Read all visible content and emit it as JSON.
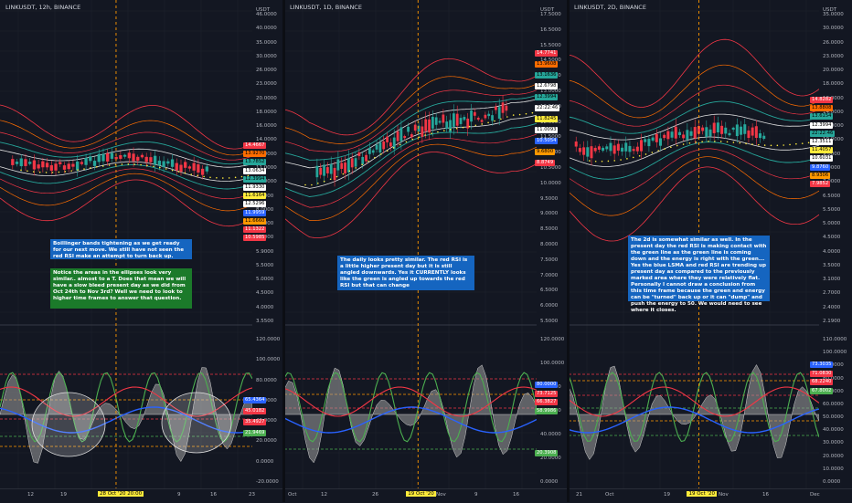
{
  "panes": [
    {
      "symbol": "LINKUSDT, 12h, BINANCE",
      "unit": "USDT",
      "price_ticks": [
        "46.0000",
        "40.0000",
        "35.0000",
        "30.0000",
        "26.0000",
        "23.0000",
        "20.0000",
        "18.0000",
        "16.0000",
        "14.0000",
        "12.0000",
        "11.0000",
        "10.0000",
        "9.0000",
        "8.0000",
        "7.0000",
        "6.5000",
        "5.9000",
        "5.5000",
        "5.0000",
        "4.5000",
        "4.0000",
        "3.5500"
      ],
      "price_tags": [
        "14.4667",
        "13.9270",
        "13.7852",
        "13.0634",
        "12.3994",
        "11.9330",
        "11.6164",
        "12.5296",
        "11.9959",
        "11.6660",
        "11.1322",
        "10.5985"
      ],
      "osc_ticks": [
        "120.0000",
        "100.0000",
        "80.0000",
        "60.0000",
        "40.0000",
        "20.0000",
        "0.0000",
        "-20.0000"
      ],
      "osc_tags": [
        "65.4364",
        "45.0182",
        "35.4927",
        "21.9469"
      ],
      "notes": [
        {
          "style": "blue",
          "text": "Boillinger bands tightening as we get ready for our next move. We still have not seen the red RSI make an attempt to turn back up."
        },
        {
          "style": "green",
          "text": "Notice the areas in the ellipses look very similar.. almost to a T. Does that mean we will have a slow bleed present day as we did from Oct 24th to Nov 3rd? Well we need to look to higher time frames to answer that question."
        }
      ],
      "x_labels": [
        "12",
        "19",
        "Nov",
        "9",
        "16",
        "23"
      ],
      "x_date": "28 Oct '20  20:00"
    },
    {
      "symbol": "LINKUSDT, 1D, BINANCE",
      "unit": "USDT",
      "price_ticks": [
        "17.5000",
        "16.5000",
        "15.5000",
        "14.5000",
        "13.5000",
        "13.0000",
        "12.5000",
        "12.0000",
        "11.5000",
        "11.0000",
        "10.5000",
        "10.0000",
        "9.5000",
        "9.0000",
        "8.5000",
        "8.0000",
        "7.5000",
        "7.0000",
        "6.5000",
        "6.0000",
        "5.5000"
      ],
      "price_tags": [
        "14.7741",
        "13.9608",
        "13.1636",
        "12.6798",
        "12.3994",
        "22:22:46",
        "11.8245",
        "11.0093",
        "10.5054",
        "9.6800",
        "8.8749"
      ],
      "osc_ticks": [
        "120.0000",
        "100.0000",
        "80.0000",
        "60.0000",
        "40.0000",
        "20.0000",
        "0.0000"
      ],
      "osc_tags": [
        "80.0000",
        "73.7125",
        "66.3827",
        "58.9986",
        "20.3908"
      ],
      "notes": [
        {
          "style": "blue",
          "text": "The daily looks pretty similar. The red RSI is a little higher present day but it is still angled downwards. Yes it CURRENTLY looks like the green is angled up towards the red RSI but that can change"
        }
      ],
      "x_labels": [
        "Oct",
        "12",
        "26",
        "Nov",
        "9",
        "16"
      ],
      "x_date": "19 Oct '20"
    },
    {
      "symbol": "LINKUSDT, 2D, BINANCE",
      "unit": "USDT",
      "price_ticks": [
        "35.0000",
        "30.0000",
        "26.0000",
        "23.0000",
        "20.0000",
        "18.0000",
        "16.0000",
        "14.0000",
        "12.0000",
        "10.0000",
        "9.0000",
        "8.0000",
        "7.0000",
        "6.5000",
        "5.5000",
        "5.0000",
        "4.5000",
        "4.0000",
        "3.5000",
        "3.1000",
        "2.7000",
        "2.4000",
        "2.1900"
      ],
      "price_tags": [
        "14.8282",
        "13.8808",
        "13.6154",
        "12.3994",
        "22:22:46",
        "12.3511",
        "11.4057",
        "10.6031",
        "9.8760",
        "8.9306",
        "7.9852"
      ],
      "osc_ticks": [
        "110.0000",
        "100.0000",
        "90.0000",
        "80.0000",
        "70.0000",
        "60.0000",
        "50.0000",
        "40.0000",
        "30.0000",
        "20.0000",
        "10.0000",
        "0.0000"
      ],
      "osc_tags": [
        "73.3035",
        "71.0830",
        "68.2240",
        "67.8002"
      ],
      "notes": [
        {
          "style": "blue",
          "text": "The  2d is somewhat similar as well. In the present day the red RSI is making contact with the green line as the green line is coming down and the energy is right with the green... Yes the blue LSMA and red RSI are trending up present day as compared to the previously marked area where they were relatively flat. Personally I cannot draw a conclusion from this time frame because the green and energy can be \"turned\" back up or it can \"dump\" and push the energy to 50. We would need to see where it closes."
        }
      ],
      "x_labels": [
        "21",
        "Oct",
        "19",
        "Nov",
        "16",
        "Dec"
      ],
      "x_date": "19 Oct '20"
    }
  ],
  "colors": {
    "bg": "#131722",
    "red": "#f23645",
    "green": "#4caf50",
    "blue": "#2962ff",
    "teal": "#26a69a",
    "orange": "#ff9800",
    "yellow": "#ffeb3b",
    "grey": "#9e9e9e"
  }
}
